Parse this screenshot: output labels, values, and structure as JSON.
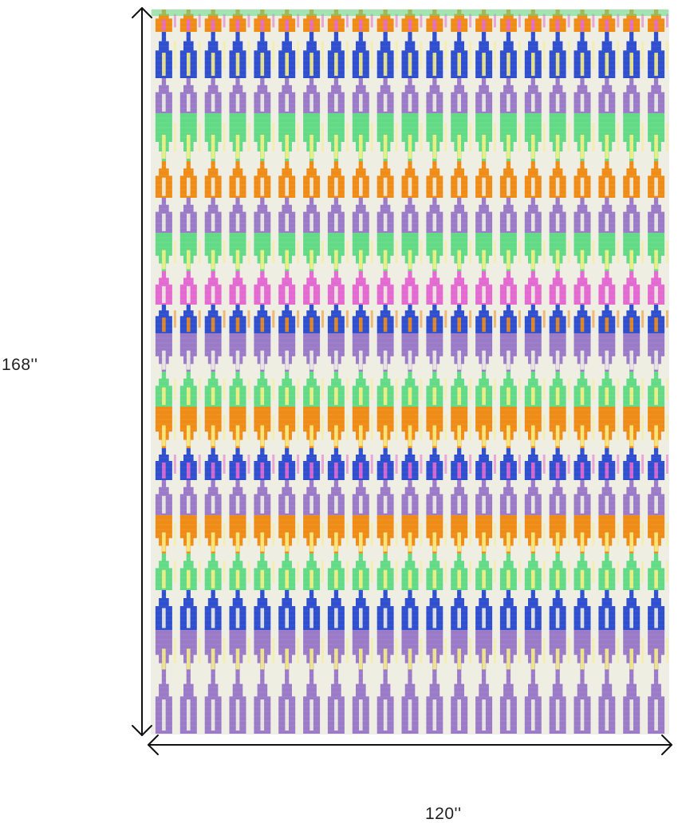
{
  "rug": {
    "colors": {
      "orange": "#ef8c17",
      "blue": "#2f4fcf",
      "green": "#63db86",
      "yellow": "#f6ee86",
      "purple": "#9b7bc8",
      "pink": "#e36ad0",
      "cream": "#efeee3"
    }
  },
  "dimensions": {
    "height": "168''",
    "width": "120''"
  }
}
